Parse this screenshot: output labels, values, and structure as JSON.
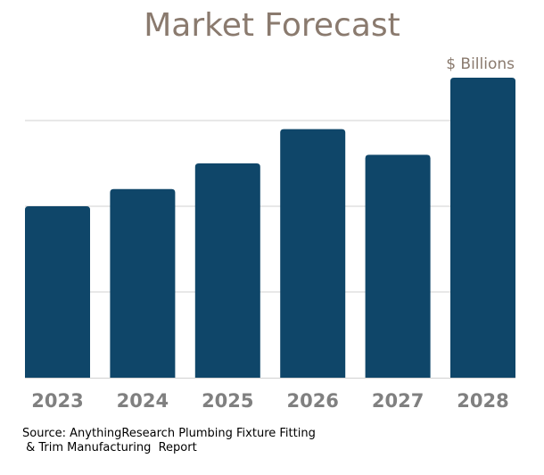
{
  "chart_data": {
    "type": "bar",
    "title": "Market Forecast",
    "unit_label": "$ Billions",
    "categories": [
      "2023",
      "2024",
      "2025",
      "2026",
      "2027",
      "2028"
    ],
    "values": [
      2.0,
      2.2,
      2.5,
      2.9,
      2.6,
      3.5
    ],
    "ylim": [
      0,
      3.5
    ],
    "gridlines": [
      1,
      2,
      3
    ],
    "grid": true,
    "y_tick_labels_shown": false,
    "bar_color": "#0f4669",
    "grid_color": "#d0d0d0",
    "tick_label_color": "#808080"
  },
  "source": {
    "line1": "Source: AnythingResearch Plumbing Fixture Fitting",
    "line2": " & Trim Manufacturing  Report"
  }
}
